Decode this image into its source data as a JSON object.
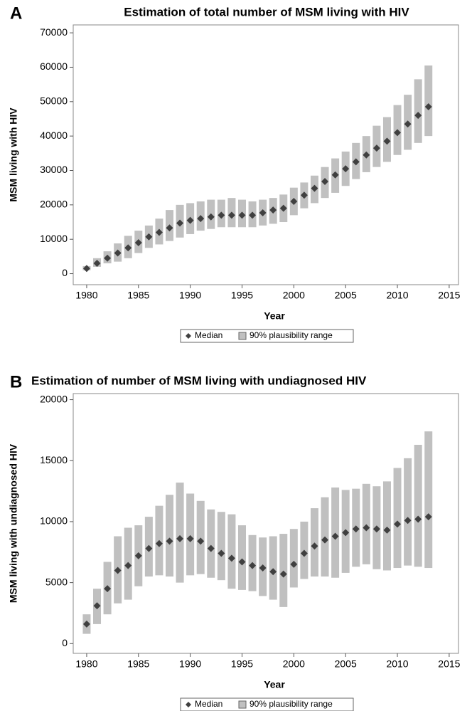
{
  "chart_data": [
    {
      "type": "range",
      "panel": "A",
      "title": "Estimation of total number of MSM living with HIV",
      "x_label": "Year",
      "y_label": "MSM living with HIV",
      "x": [
        1980,
        1981,
        1982,
        1983,
        1984,
        1985,
        1986,
        1987,
        1988,
        1989,
        1990,
        1991,
        1992,
        1993,
        1994,
        1995,
        1996,
        1997,
        1998,
        1999,
        2000,
        2001,
        2002,
        2003,
        2004,
        2005,
        2006,
        2007,
        2008,
        2009,
        2010,
        2011,
        2012,
        2013
      ],
      "series": [
        {
          "name": "Median",
          "color": "#404040",
          "values": [
            1500,
            3000,
            4500,
            6000,
            7500,
            9000,
            10700,
            12000,
            13300,
            14700,
            15500,
            16000,
            16500,
            17000,
            17000,
            17000,
            17000,
            17700,
            18500,
            19000,
            21000,
            22800,
            24800,
            26800,
            28700,
            30500,
            32500,
            34500,
            36500,
            38500,
            41000,
            43500,
            46000,
            48500
          ]
        },
        {
          "name": "90% plausibility range",
          "color": "#c0c0c0",
          "low": [
            1000,
            2000,
            3000,
            3500,
            4500,
            6000,
            7500,
            8500,
            9500,
            10500,
            11500,
            12500,
            13000,
            13500,
            13500,
            13500,
            13500,
            14000,
            14500,
            15000,
            17000,
            19000,
            20500,
            22000,
            23500,
            25500,
            27500,
            29500,
            31000,
            32500,
            34500,
            36000,
            38000,
            40000
          ],
          "high": [
            2200,
            4500,
            6500,
            8800,
            11000,
            12500,
            14000,
            16000,
            18500,
            20000,
            20500,
            21000,
            21500,
            21500,
            22000,
            21500,
            21000,
            21500,
            22000,
            23000,
            25000,
            26500,
            28500,
            31000,
            33500,
            35500,
            38000,
            40000,
            43000,
            45500,
            49000,
            52000,
            56500,
            60500
          ]
        }
      ],
      "xlim": [
        1978.7,
        2015.9
      ],
      "xticks": [
        1980,
        1985,
        1990,
        1995,
        2000,
        2005,
        2010,
        2015
      ],
      "ylim": [
        -3200,
        72300
      ],
      "yticks": [
        0,
        10000,
        20000,
        30000,
        40000,
        50000,
        60000,
        70000
      ]
    },
    {
      "type": "range",
      "panel": "B",
      "title": "Estimation of number of MSM living with undiagnosed HIV",
      "x_label": "Year",
      "y_label": "MSM living with undiagnosed HIV",
      "x": [
        1980,
        1981,
        1982,
        1983,
        1984,
        1985,
        1986,
        1987,
        1988,
        1989,
        1990,
        1991,
        1992,
        1993,
        1994,
        1995,
        1996,
        1997,
        1998,
        1999,
        2000,
        2001,
        2002,
        2003,
        2004,
        2005,
        2006,
        2007,
        2008,
        2009,
        2010,
        2011,
        2012,
        2013
      ],
      "series": [
        {
          "name": "Median",
          "color": "#404040",
          "values": [
            1600,
            3100,
            4500,
            6000,
            6400,
            7200,
            7800,
            8200,
            8400,
            8600,
            8600,
            8400,
            7800,
            7400,
            7000,
            6700,
            6400,
            6200,
            5900,
            5700,
            6500,
            7400,
            8000,
            8500,
            8800,
            9100,
            9400,
            9500,
            9400,
            9300,
            9800,
            10100,
            10200,
            10400
          ]
        },
        {
          "name": "90% plausibility range",
          "color": "#c0c0c0",
          "low": [
            800,
            1600,
            2400,
            3300,
            3600,
            4700,
            5500,
            5600,
            5500,
            5000,
            5600,
            5700,
            5400,
            5200,
            4500,
            4400,
            4300,
            3900,
            3600,
            3000,
            4600,
            5300,
            5500,
            5500,
            5400,
            5800,
            6300,
            6500,
            6100,
            6000,
            6200,
            6400,
            6300,
            6200
          ],
          "high": [
            2400,
            4500,
            6700,
            8800,
            9500,
            9700,
            10400,
            11300,
            12200,
            13200,
            12300,
            11700,
            11000,
            10800,
            10600,
            9700,
            8900,
            8700,
            8800,
            9000,
            9400,
            10000,
            11100,
            12000,
            12800,
            12600,
            12700,
            13100,
            12900,
            13300,
            14400,
            15200,
            16300,
            17400
          ]
        }
      ],
      "xlim": [
        1978.7,
        2015.9
      ],
      "xticks": [
        1980,
        1985,
        1990,
        1995,
        2000,
        2005,
        2010,
        2015
      ],
      "ylim": [
        -800,
        20500
      ],
      "yticks": [
        0,
        5000,
        10000,
        15000,
        20000
      ]
    }
  ]
}
